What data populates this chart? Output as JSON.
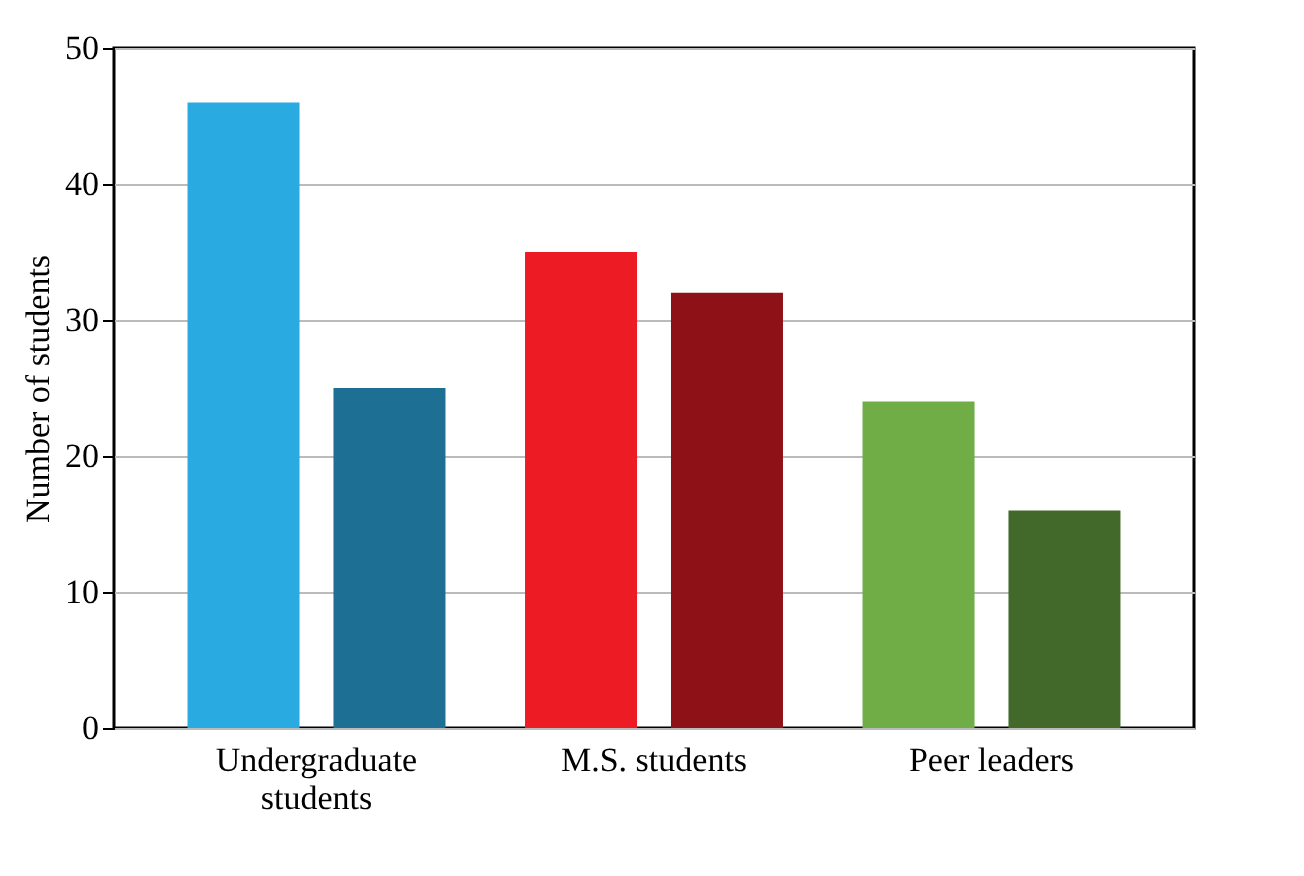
{
  "chart_data": {
    "type": "bar",
    "ylabel": "Number of students",
    "categories": [
      "Undergraduate students",
      "M.S. students",
      "Peer leaders"
    ],
    "series": [
      {
        "colors": [
          "#29abe2",
          "#ed1c24",
          "#70ad47"
        ],
        "values": [
          46,
          35,
          24
        ]
      },
      {
        "colors": [
          "#1d6f93",
          "#8e1117",
          "#42692a"
        ],
        "values": [
          25,
          32,
          16
        ]
      }
    ],
    "ylim": [
      0,
      50
    ],
    "yticks": [
      0,
      10,
      20,
      30,
      40,
      50
    ],
    "grid": "y"
  }
}
